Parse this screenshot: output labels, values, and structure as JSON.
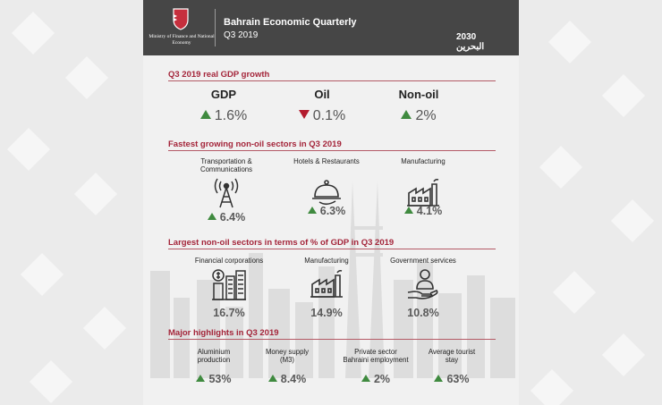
{
  "header": {
    "title": "Bahrain Economic Quarterly",
    "subtitle": "Q3 2019",
    "ministry": "Ministry of Finance and National Economy",
    "vision_logo": "2030 البحرين"
  },
  "colors": {
    "header_bg": "#464646",
    "accent": "#a4253a",
    "up": "#3f8a3f",
    "down": "#b31b2e"
  },
  "gdp": {
    "title": "Q3 2019 real GDP growth",
    "items": [
      {
        "label": "GDP",
        "value": "1.6%",
        "trend": "up"
      },
      {
        "label": "Oil",
        "value": "0.1%",
        "trend": "down"
      },
      {
        "label": "Non-oil",
        "value": "2%",
        "trend": "up"
      }
    ]
  },
  "fastest": {
    "title": "Fastest growing non-oil sectors in Q3 2019",
    "items": [
      {
        "label": "Transportation & Communications",
        "label_line1": "Transportation &",
        "label_line2": "Communications",
        "value": "6.4%",
        "icon": "antenna-tower-icon"
      },
      {
        "label": "Hotels & Restaurants",
        "value": "6.3%",
        "icon": "food-cloche-icon"
      },
      {
        "label": "Manufacturing",
        "value": "4.1%",
        "icon": "factory-icon"
      }
    ]
  },
  "largest": {
    "title": "Largest non-oil sectors in terms of % of GDP in Q3 2019",
    "items": [
      {
        "label": "Financial corporations",
        "value": "16.7%",
        "icon": "bank-towers-icon"
      },
      {
        "label": "Manufacturing",
        "value": "14.9%",
        "icon": "factory-icon"
      },
      {
        "label": "Government services",
        "value": "10.8%",
        "icon": "hand-person-icon"
      }
    ]
  },
  "highlights": {
    "title": "Major highlights in Q3 2019",
    "items": [
      {
        "label_line1": "Aluminium",
        "label_line2": "production",
        "value": "53%"
      },
      {
        "label_line1": "Money supply",
        "label_line2": "(M3)",
        "value": "8.4%"
      },
      {
        "label_line1": "Private sector",
        "label_line2": "Bahraini employment",
        "value": "2%"
      },
      {
        "label_line1": "Average tourist",
        "label_line2": "stay",
        "value": "63%"
      }
    ]
  }
}
